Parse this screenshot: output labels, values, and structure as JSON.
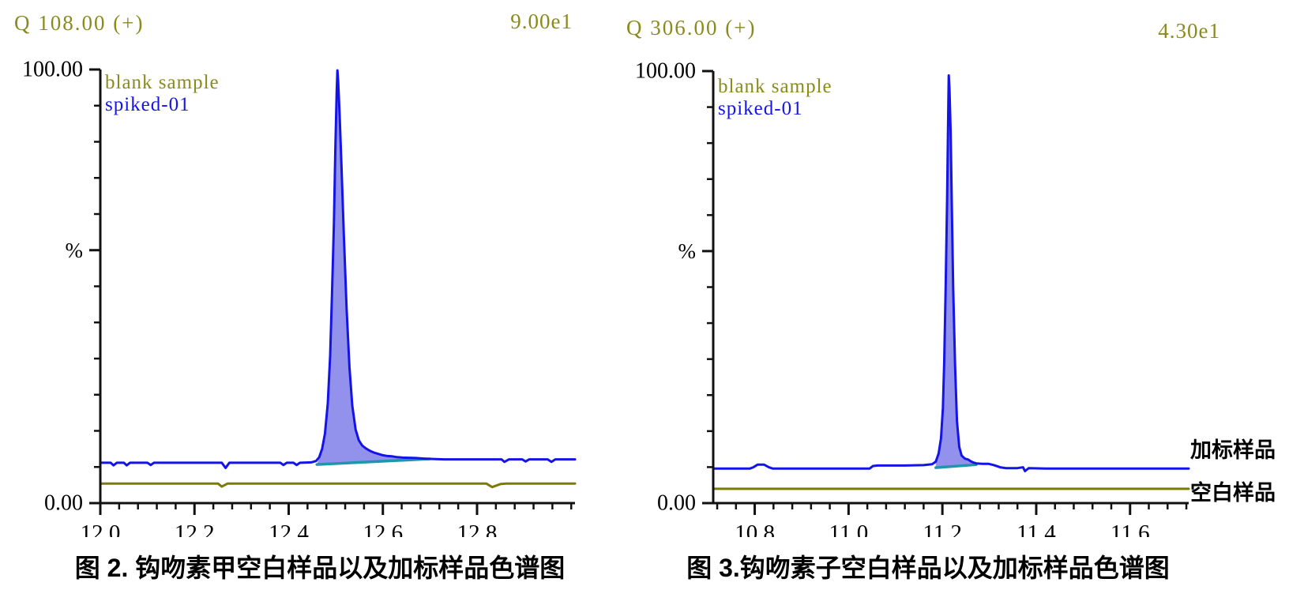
{
  "colors": {
    "olive": "#7c7c04",
    "olive_text": "#8a8a1e",
    "blue": "#1414e8",
    "peak_fill": "#9292ec",
    "teal": "#2095ad",
    "axis": "#111111",
    "text": "#000000"
  },
  "chart_data": [
    {
      "type": "line",
      "panel": "left",
      "channel_label": "Q 108.00 (+)",
      "intensity_scale": "9.00e1",
      "ylabel": "%",
      "y_top_label": "100.00",
      "y_bottom_label": "0.00",
      "ylim": [
        0,
        100
      ],
      "xlim": [
        12.0,
        13.008
      ],
      "x_major_ticks": [
        {
          "v": 12.0,
          "label": "12.0"
        },
        {
          "v": 12.2,
          "label": "12.2"
        },
        {
          "v": 12.4,
          "label": "12.4"
        },
        {
          "v": 12.6,
          "label": "12.6"
        },
        {
          "v": 12.8,
          "label": "12.8"
        }
      ],
      "x_minor_step": 0.04,
      "y_divisions": 12,
      "y_mid_tick_index": 5,
      "legend": [
        {
          "label": "blank sample",
          "color_key": "olive_text"
        },
        {
          "label": "spiked-01",
          "color_key": "blue"
        }
      ],
      "series": [
        {
          "name": "blank sample",
          "color_key": "olive",
          "points": [
            [
              12.0,
              4.5
            ],
            [
              12.25,
              4.5
            ],
            [
              12.258,
              3.8
            ],
            [
              12.27,
              4.5
            ],
            [
              12.82,
              4.5
            ],
            [
              12.832,
              3.7
            ],
            [
              12.85,
              4.4
            ],
            [
              12.862,
              4.5
            ],
            [
              13.008,
              4.5
            ]
          ]
        },
        {
          "name": "spiked-01",
          "color_key": "blue",
          "points": [
            [
              12.0,
              9.3
            ],
            [
              12.022,
              9.3
            ],
            [
              12.028,
              8.7
            ],
            [
              12.035,
              9.3
            ],
            [
              12.05,
              9.3
            ],
            [
              12.056,
              8.7
            ],
            [
              12.063,
              9.3
            ],
            [
              12.1,
              9.3
            ],
            [
              12.107,
              8.8
            ],
            [
              12.114,
              9.3
            ],
            [
              12.258,
              9.3
            ],
            [
              12.266,
              8.1
            ],
            [
              12.274,
              9.3
            ],
            [
              12.382,
              9.3
            ],
            [
              12.389,
              8.8
            ],
            [
              12.396,
              9.3
            ],
            [
              12.41,
              9.3
            ],
            [
              12.417,
              8.8
            ],
            [
              12.424,
              9.3
            ],
            [
              12.448,
              9.4
            ],
            [
              12.458,
              9.7
            ],
            [
              12.465,
              10.6
            ],
            [
              12.471,
              12.5
            ],
            [
              12.477,
              16.0
            ],
            [
              12.483,
              23.0
            ],
            [
              12.488,
              34.0
            ],
            [
              12.492,
              48.0
            ],
            [
              12.496,
              64.0
            ],
            [
              12.499,
              81.0
            ],
            [
              12.502,
              95.0
            ],
            [
              12.5035,
              99.8
            ],
            [
              12.505,
              97.5
            ],
            [
              12.508,
              90.0
            ],
            [
              12.512,
              78.0
            ],
            [
              12.517,
              62.0
            ],
            [
              12.523,
              45.0
            ],
            [
              12.529,
              31.5
            ],
            [
              12.535,
              22.5
            ],
            [
              12.542,
              17.0
            ],
            [
              12.549,
              14.5
            ],
            [
              12.556,
              13.3
            ],
            [
              12.564,
              12.6
            ],
            [
              12.572,
              12.1
            ],
            [
              12.58,
              11.7
            ],
            [
              12.589,
              11.4
            ],
            [
              12.598,
              11.1
            ],
            [
              12.608,
              10.9
            ],
            [
              12.619,
              10.8
            ],
            [
              12.63,
              10.6
            ],
            [
              12.643,
              10.5
            ],
            [
              12.656,
              10.45
            ],
            [
              12.67,
              10.4
            ],
            [
              12.684,
              10.3
            ],
            [
              12.7,
              10.2
            ],
            [
              12.73,
              10.1
            ],
            [
              12.78,
              10.1
            ],
            [
              12.83,
              10.1
            ],
            [
              12.852,
              10.1
            ],
            [
              12.858,
              9.5
            ],
            [
              12.868,
              10.1
            ],
            [
              12.896,
              10.1
            ],
            [
              12.903,
              9.6
            ],
            [
              12.911,
              10.1
            ],
            [
              12.95,
              10.1
            ],
            [
              12.958,
              9.5
            ],
            [
              12.966,
              10.1
            ],
            [
              13.008,
              10.1
            ]
          ]
        }
      ],
      "integration_baseline": {
        "color_key": "teal",
        "from": [
          12.46,
          8.9
        ],
        "to": [
          12.7,
          10.2
        ]
      },
      "peak_apex_x": 12.5,
      "caption": "图 2. 钩吻素甲空白样品以及加标样品色谱图"
    },
    {
      "type": "line",
      "panel": "right",
      "channel_label": "Q 306.00 (+)",
      "intensity_scale": "4.30e1",
      "ylabel": "%",
      "y_top_label": "100.00",
      "y_bottom_label": "0.00",
      "ylim": [
        0,
        100
      ],
      "xlim": [
        10.7115,
        11.725
      ],
      "x_major_ticks": [
        {
          "v": 10.8,
          "label": "10.8"
        },
        {
          "v": 11.0,
          "label": "11.0"
        },
        {
          "v": 11.2,
          "label": "11.2"
        },
        {
          "v": 11.4,
          "label": "11.4"
        },
        {
          "v": 11.6,
          "label": "11.6"
        }
      ],
      "x_minor_step": 0.04,
      "y_divisions": 12,
      "y_mid_tick_index": 5,
      "legend": [
        {
          "label": "blank sample",
          "color_key": "olive_text"
        },
        {
          "label": "spiked-01",
          "color_key": "blue"
        }
      ],
      "series": [
        {
          "name": "blank sample",
          "color_key": "olive",
          "points": [
            [
              10.7115,
              3.3
            ],
            [
              11.725,
              3.3
            ]
          ]
        },
        {
          "name": "spiked-01",
          "color_key": "blue",
          "points": [
            [
              10.7115,
              8.0
            ],
            [
              10.79,
              8.0
            ],
            [
              10.797,
              8.3
            ],
            [
              10.806,
              8.9
            ],
            [
              10.82,
              8.9
            ],
            [
              10.83,
              8.3
            ],
            [
              10.838,
              8.0
            ],
            [
              11.045,
              8.0
            ],
            [
              11.052,
              8.6
            ],
            [
              11.062,
              8.7
            ],
            [
              11.12,
              8.7
            ],
            [
              11.16,
              8.8
            ],
            [
              11.178,
              9.0
            ],
            [
              11.186,
              9.6
            ],
            [
              11.192,
              11.5
            ],
            [
              11.197,
              15.0
            ],
            [
              11.201,
              22.0
            ],
            [
              11.204,
              33.0
            ],
            [
              11.207,
              50.0
            ],
            [
              11.21,
              70.0
            ],
            [
              11.212,
              87.0
            ],
            [
              11.2135,
              99.0
            ],
            [
              11.215,
              96.0
            ],
            [
              11.2175,
              86.0
            ],
            [
              11.22,
              70.0
            ],
            [
              11.223,
              50.0
            ],
            [
              11.227,
              32.0
            ],
            [
              11.231,
              19.0
            ],
            [
              11.236,
              13.0
            ],
            [
              11.241,
              11.0
            ],
            [
              11.248,
              10.3
            ],
            [
              11.255,
              10.1
            ],
            [
              11.26,
              9.7
            ],
            [
              11.266,
              9.4
            ],
            [
              11.272,
              9.2
            ],
            [
              11.285,
              9.1
            ],
            [
              11.298,
              9.1
            ],
            [
              11.31,
              8.8
            ],
            [
              11.323,
              8.3
            ],
            [
              11.335,
              8.1
            ],
            [
              11.36,
              8.1
            ],
            [
              11.372,
              8.3
            ],
            [
              11.376,
              7.4
            ],
            [
              11.384,
              8.1
            ],
            [
              11.42,
              8.0
            ],
            [
              11.55,
              8.0
            ],
            [
              11.725,
              8.0
            ]
          ]
        }
      ],
      "integration_baseline": {
        "color_key": "teal",
        "from": [
          11.186,
          8.2
        ],
        "to": [
          11.272,
          8.9
        ]
      },
      "peak_apex_x": 11.21,
      "annotations": [
        {
          "text": "加标样品"
        },
        {
          "text": "空白样品"
        }
      ],
      "caption": "图 3.钩吻素子空白样品以及加标样品色谱图"
    }
  ]
}
